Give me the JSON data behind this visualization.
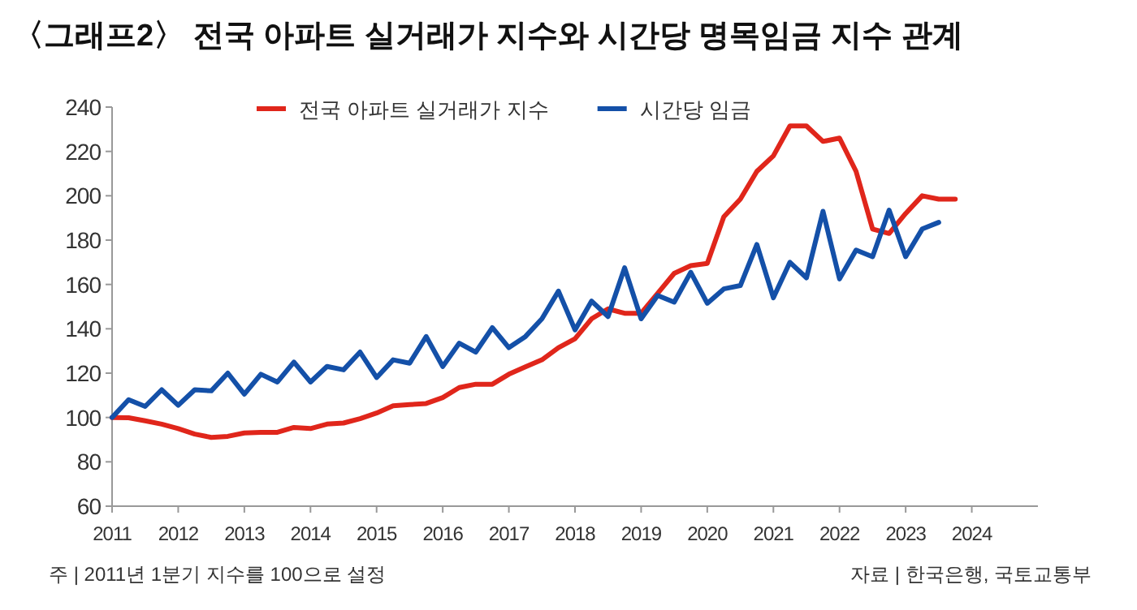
{
  "chart_data": {
    "type": "line",
    "title": "〈그래프2〉 전국 아파트 실거래가 지수와 시간당 명목임금 지수 관계",
    "xlim": [
      2011,
      2025
    ],
    "xticks": [
      2011,
      2012,
      2013,
      2014,
      2015,
      2016,
      2017,
      2018,
      2019,
      2020,
      2021,
      2022,
      2023,
      2024
    ],
    "ylim": [
      60,
      240
    ],
    "yticks": [
      60,
      80,
      100,
      120,
      140,
      160,
      180,
      200,
      220,
      240
    ],
    "grid": false,
    "legend": "top",
    "marker": "none",
    "line_style": "solid",
    "series": [
      {
        "name": "전국 아파트 실거래가 지수",
        "color": "#e0261b",
        "x": [
          2011,
          2011.25,
          2011.5,
          2011.75,
          2012,
          2012.25,
          2012.5,
          2012.75,
          2013,
          2013.25,
          2013.5,
          2013.75,
          2014,
          2014.25,
          2014.5,
          2014.75,
          2015,
          2015.25,
          2015.5,
          2015.75,
          2016,
          2016.25,
          2016.5,
          2016.75,
          2017,
          2017.25,
          2017.5,
          2017.75,
          2018,
          2018.25,
          2018.5,
          2018.75,
          2019,
          2019.25,
          2019.5,
          2019.75,
          2020,
          2020.25,
          2020.5,
          2020.75,
          2021,
          2021.25,
          2021.5,
          2021.75,
          2022,
          2022.25,
          2022.5,
          2022.75,
          2023,
          2023.25,
          2023.5,
          2023.75
        ],
        "values": [
          100,
          99.9,
          98.5,
          97,
          95,
          92.5,
          91,
          91.5,
          93,
          93.3,
          93.3,
          95.5,
          95,
          97,
          97.5,
          99.5,
          102,
          105.3,
          105.8,
          106.3,
          109,
          113.5,
          115,
          115,
          119.5,
          122.8,
          126,
          131.5,
          135.5,
          144.5,
          149,
          147,
          147,
          156,
          165,
          168.5,
          169.5,
          190.5,
          198.5,
          211,
          218,
          231.5,
          231.5,
          224.5,
          226,
          211,
          185,
          183,
          192,
          200,
          198.5,
          198.5
        ]
      },
      {
        "name": "시간당 임금",
        "color": "#1450a8",
        "x": [
          2011,
          2011.25,
          2011.5,
          2011.75,
          2012,
          2012.25,
          2012.5,
          2012.75,
          2013,
          2013.25,
          2013.5,
          2013.75,
          2014,
          2014.25,
          2014.5,
          2014.75,
          2015,
          2015.25,
          2015.5,
          2015.75,
          2016,
          2016.25,
          2016.5,
          2016.75,
          2017,
          2017.25,
          2017.5,
          2017.75,
          2018,
          2018.25,
          2018.5,
          2018.75,
          2019,
          2019.25,
          2019.5,
          2019.75,
          2020,
          2020.25,
          2020.5,
          2020.75,
          2021,
          2021.25,
          2021.5,
          2021.75,
          2022,
          2022.25,
          2022.5,
          2022.75,
          2023,
          2023.25,
          2023.5
        ],
        "values": [
          100,
          108,
          105,
          112.5,
          105.5,
          112.5,
          112,
          120,
          110.5,
          119.5,
          116,
          125,
          116,
          123,
          121.5,
          129.5,
          118,
          126,
          124.5,
          136.5,
          123,
          133.5,
          129.5,
          140.5,
          131.5,
          136.5,
          144.5,
          157,
          139.5,
          152.5,
          145.5,
          167.5,
          144.5,
          155,
          152,
          165.5,
          151.5,
          158,
          159.5,
          178,
          154,
          170,
          163,
          193,
          162.5,
          175.5,
          172.5,
          193.5,
          172.5,
          185,
          188
        ]
      }
    ],
    "annotations": [
      "주 | 2011년 1분기 지수를 100으로 설정",
      "자료 | 한국은행, 국토교통부"
    ]
  }
}
